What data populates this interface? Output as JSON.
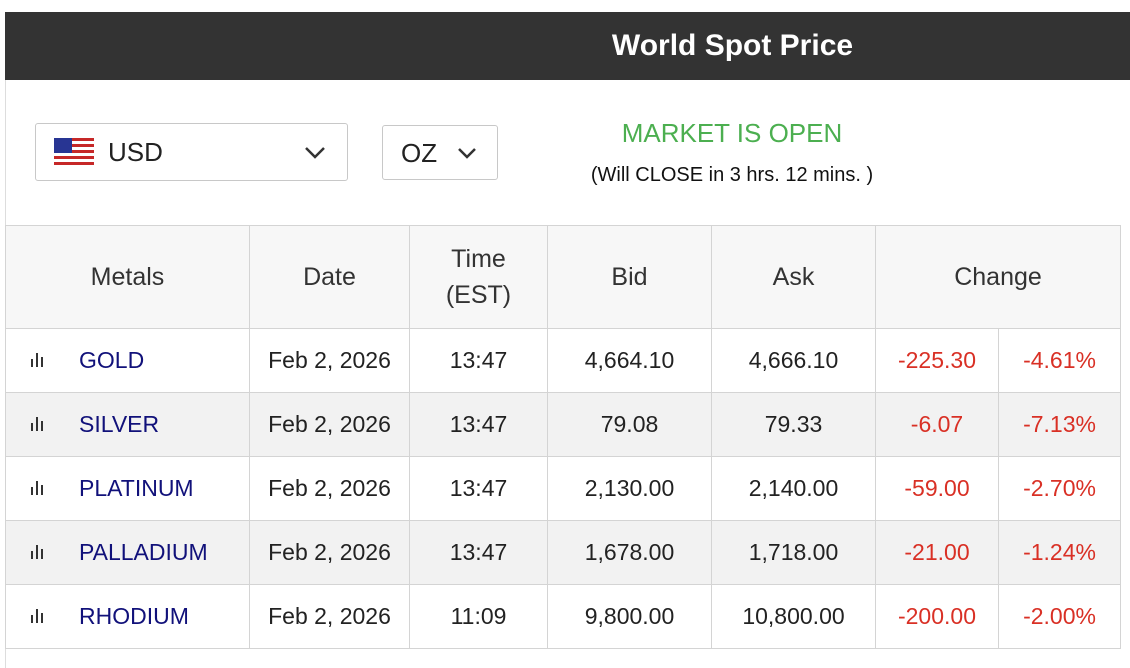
{
  "header": {
    "title": "World Spot Price"
  },
  "controls": {
    "currency": "USD",
    "unit": "OZ",
    "market_status": "MARKET IS OPEN",
    "close_notice": "(Will CLOSE in 3 hrs. 12 mins. )"
  },
  "table": {
    "headers": [
      "Metals",
      "Date",
      "Time (EST)",
      "Bid",
      "Ask",
      "Change"
    ],
    "rows": [
      [
        "GOLD",
        "Feb 2, 2026",
        "13:47",
        "4,664.10",
        "4,666.10",
        "-225.30",
        "-4.61%"
      ],
      [
        "SILVER",
        "Feb 2, 2026",
        "13:47",
        "79.08",
        "79.33",
        "-6.07",
        "-7.13%"
      ],
      [
        "PLATINUM",
        "Feb 2, 2026",
        "13:47",
        "2,130.00",
        "2,140.00",
        "-59.00",
        "-2.70%"
      ],
      [
        "PALLADIUM",
        "Feb 2, 2026",
        "13:47",
        "1,678.00",
        "1,718.00",
        "-21.00",
        "-1.24%"
      ],
      [
        "RHODIUM",
        "Feb 2, 2026",
        "11:09",
        "9,800.00",
        "10,800.00",
        "-200.00",
        "-2.00%"
      ]
    ]
  }
}
